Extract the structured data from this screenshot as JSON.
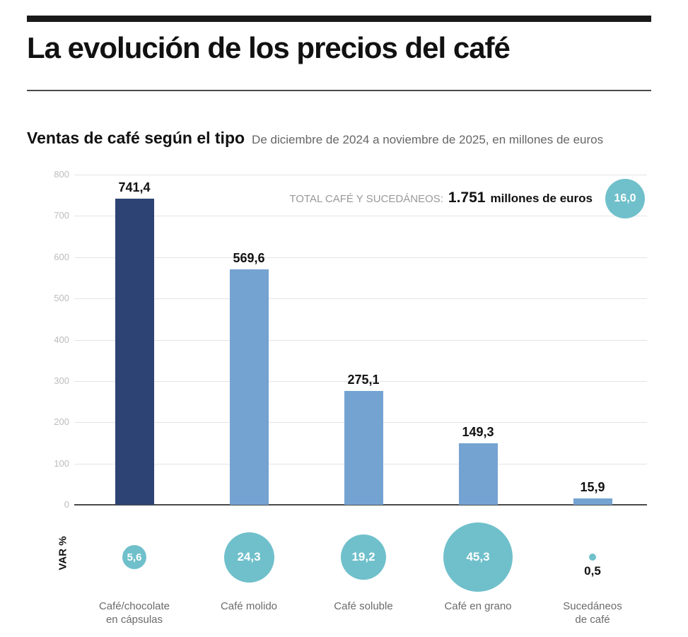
{
  "header": {
    "title": "La evolución de los precios del café"
  },
  "subtitle": {
    "title": "Ventas de café según el tipo",
    "note": "De diciembre de 2024 a noviembre de 2025, en millones de euros"
  },
  "total_annotation": {
    "label": "TOTAL CAFÉ Y SUCEDÁNEOS:",
    "value": "1.751",
    "suffix": "millones de euros",
    "var_value": "16,0"
  },
  "var_axis_label": "VAR %",
  "chart_data": {
    "type": "bar",
    "title": "Ventas de café según el tipo",
    "period": "De diciembre de 2024 a noviembre de 2025",
    "unit": "millones de euros",
    "categories": [
      "Café/chocolate en cápsulas",
      "Café molido",
      "Café soluble",
      "Café en grano",
      "Sucedáneos de café"
    ],
    "category_lines": [
      [
        "Café/chocolate",
        "en cápsulas"
      ],
      [
        "Café molido"
      ],
      [
        "Café soluble"
      ],
      [
        "Café en grano"
      ],
      [
        "Sucedáneos",
        "de café"
      ]
    ],
    "values": [
      741.4,
      569.6,
      275.1,
      149.3,
      15.9
    ],
    "value_labels": [
      "741,4",
      "569,6",
      "275,1",
      "149,3",
      "15,9"
    ],
    "var_percent": [
      5.6,
      24.3,
      19.2,
      45.3,
      0.5
    ],
    "var_labels": [
      "5,6",
      "24,3",
      "19,2",
      "45,3",
      "0,5"
    ],
    "total": {
      "label": "TOTAL CAFÉ Y SUCEDÁNEOS",
      "value": 1751,
      "var_percent": 16.0
    },
    "xlabel": "",
    "ylabel": "",
    "ylim": [
      0,
      800
    ],
    "yticks": [
      0,
      100,
      200,
      300,
      400,
      500,
      600,
      700,
      800
    ],
    "grid": true,
    "legend": "none",
    "highlight_index": 0,
    "colors": {
      "bar_highlight": "#2d4373",
      "bar_default": "#74a3d2",
      "bubble": "#6fc0cb",
      "gridline": "#e4e4e4",
      "axis_line": "#4a4a4a",
      "tick_text": "#bcbcbc"
    }
  }
}
